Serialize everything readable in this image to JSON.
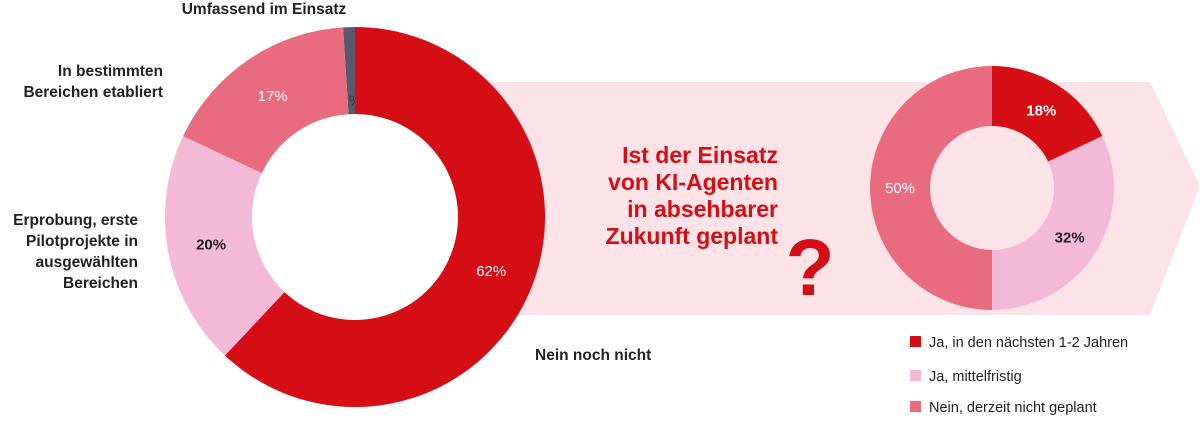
{
  "colors": {
    "red": "#d50d14",
    "pink_light": "#f4b9d6",
    "pink_mid": "#e96b80",
    "dark": "#5a5a6e",
    "arrow": "#fce3e8",
    "question": "#d50d14"
  },
  "question": {
    "lines": [
      "Ist der Einsatz",
      "von KI-Agenten",
      "in absehbarer",
      "Zukunft geplant"
    ],
    "mark": "?"
  },
  "chart_data": [
    {
      "type": "pie",
      "variant": "donut",
      "title": "",
      "slices": [
        {
          "label": "Umfassend im Einsatz",
          "value": 1,
          "value_label": "1%",
          "color": "#5a5a6e"
        },
        {
          "label": "Nein noch nicht",
          "value": 62,
          "value_label": "62%",
          "color": "#d50d14"
        },
        {
          "label": "Erprobung, erste Pilotprojekte in ausgewählten Bereichen",
          "value": 20,
          "value_label": "20%",
          "color": "#f4b9d6"
        },
        {
          "label": "In bestimmten Bereichen etabliert",
          "value": 17,
          "value_label": "17%",
          "color": "#e96b80"
        }
      ],
      "category_labels": {
        "umfassend": [
          "Umfassend im Einsatz"
        ],
        "nein": [
          "Nein noch nicht"
        ],
        "erprobung": [
          "Erprobung, erste",
          "Pilotprojekte in",
          "ausgewählten",
          "Bereichen"
        ],
        "etabliert": [
          "In bestimmten",
          "Bereichen etabliert"
        ]
      }
    },
    {
      "type": "pie",
      "variant": "donut",
      "title": "",
      "slices": [
        {
          "label": "Ja, in den nächsten 1-2 Jahren",
          "value": 18,
          "value_label": "18%",
          "color": "#d50d14"
        },
        {
          "label": "Ja, mittelfristig",
          "value": 32,
          "value_label": "32%",
          "color": "#f4b9d6"
        },
        {
          "label": "Nein, derzeit nicht geplant",
          "value": 50,
          "value_label": "50%",
          "color": "#e96b80"
        }
      ],
      "legend": [
        "Ja, in den nächsten 1-2 Jahren",
        "Ja, mittelfristig",
        "Nein, derzeit nicht geplant"
      ]
    }
  ]
}
